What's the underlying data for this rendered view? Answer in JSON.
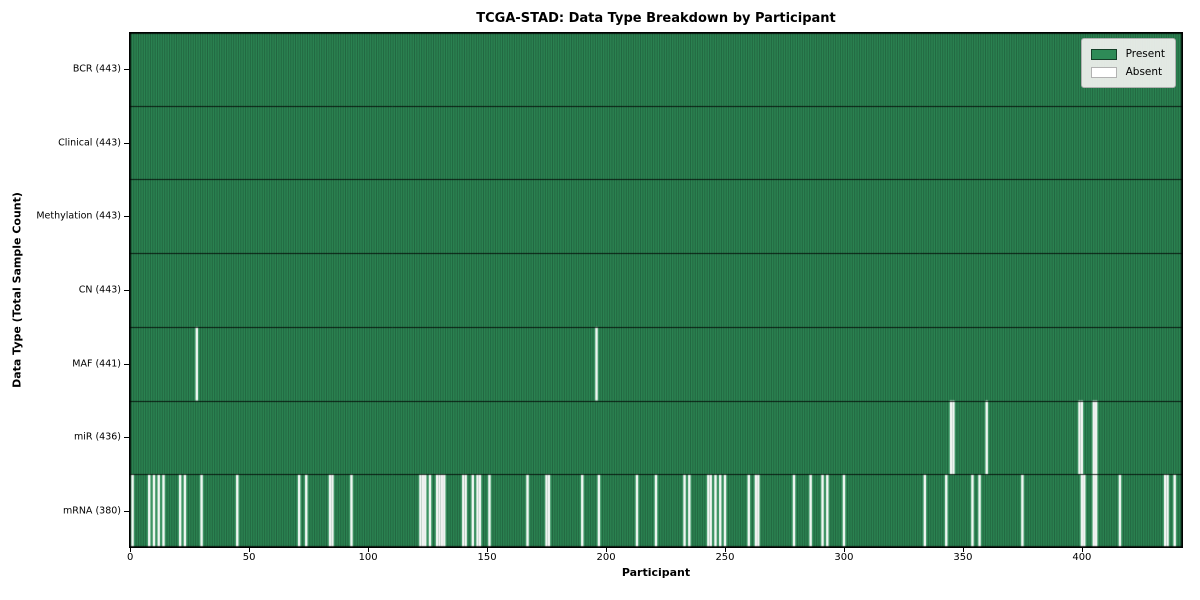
{
  "figure": {
    "title": "TCGA-STAD: Data Type Breakdown by Participant",
    "xlabel": "Participant",
    "ylabel": "Data Type (Total Sample Count)"
  },
  "chart_data": {
    "type": "heatmap",
    "title": "TCGA-STAD: Data Type Breakdown by Participant",
    "xlabel": "Participant",
    "ylabel": "Data Type (Total Sample Count)",
    "n_participants": 443,
    "x_ticks": [
      0,
      50,
      100,
      150,
      200,
      250,
      300,
      350,
      400
    ],
    "grid": false,
    "legend_position": "upper right",
    "legend": [
      {
        "label": "Present",
        "color": "#2E8B57"
      },
      {
        "label": "Absent",
        "color": "#FFFFFF"
      }
    ],
    "colors": {
      "present": "#2E8B57",
      "absent": "#FFFFFF",
      "edge_alpha": 0.42,
      "separator": "rgba(0,0,0,0.8)",
      "border": "#000000"
    },
    "rows": [
      {
        "label": "BCR (443)",
        "name": "BCR",
        "count": 443,
        "absent": []
      },
      {
        "label": "Clinical (443)",
        "name": "Clinical",
        "count": 443,
        "absent": []
      },
      {
        "label": "Methylation (443)",
        "name": "Methylation",
        "count": 443,
        "absent": []
      },
      {
        "label": "CN (443)",
        "name": "CN",
        "count": 443,
        "absent": []
      },
      {
        "label": "MAF (441)",
        "name": "MAF",
        "count": 441,
        "absent": [
          28,
          196
        ]
      },
      {
        "label": "miR (436)",
        "name": "miR",
        "count": 436,
        "absent": [
          345,
          346,
          360,
          399,
          400,
          405,
          406
        ]
      },
      {
        "label": "mRNA (380)",
        "name": "mRNA",
        "count": 380,
        "absent": [
          1,
          8,
          10,
          12,
          14,
          21,
          23,
          30,
          45,
          71,
          74,
          84,
          85,
          93,
          122,
          123,
          124,
          126,
          129,
          130,
          131,
          132,
          140,
          141,
          144,
          146,
          147,
          151,
          167,
          175,
          176,
          190,
          197,
          213,
          221,
          233,
          235,
          243,
          244,
          246,
          248,
          250,
          260,
          263,
          264,
          279,
          286,
          291,
          293,
          300,
          334,
          343,
          354,
          357,
          375,
          400,
          401,
          405,
          406,
          416,
          435,
          436,
          439
        ]
      }
    ]
  }
}
